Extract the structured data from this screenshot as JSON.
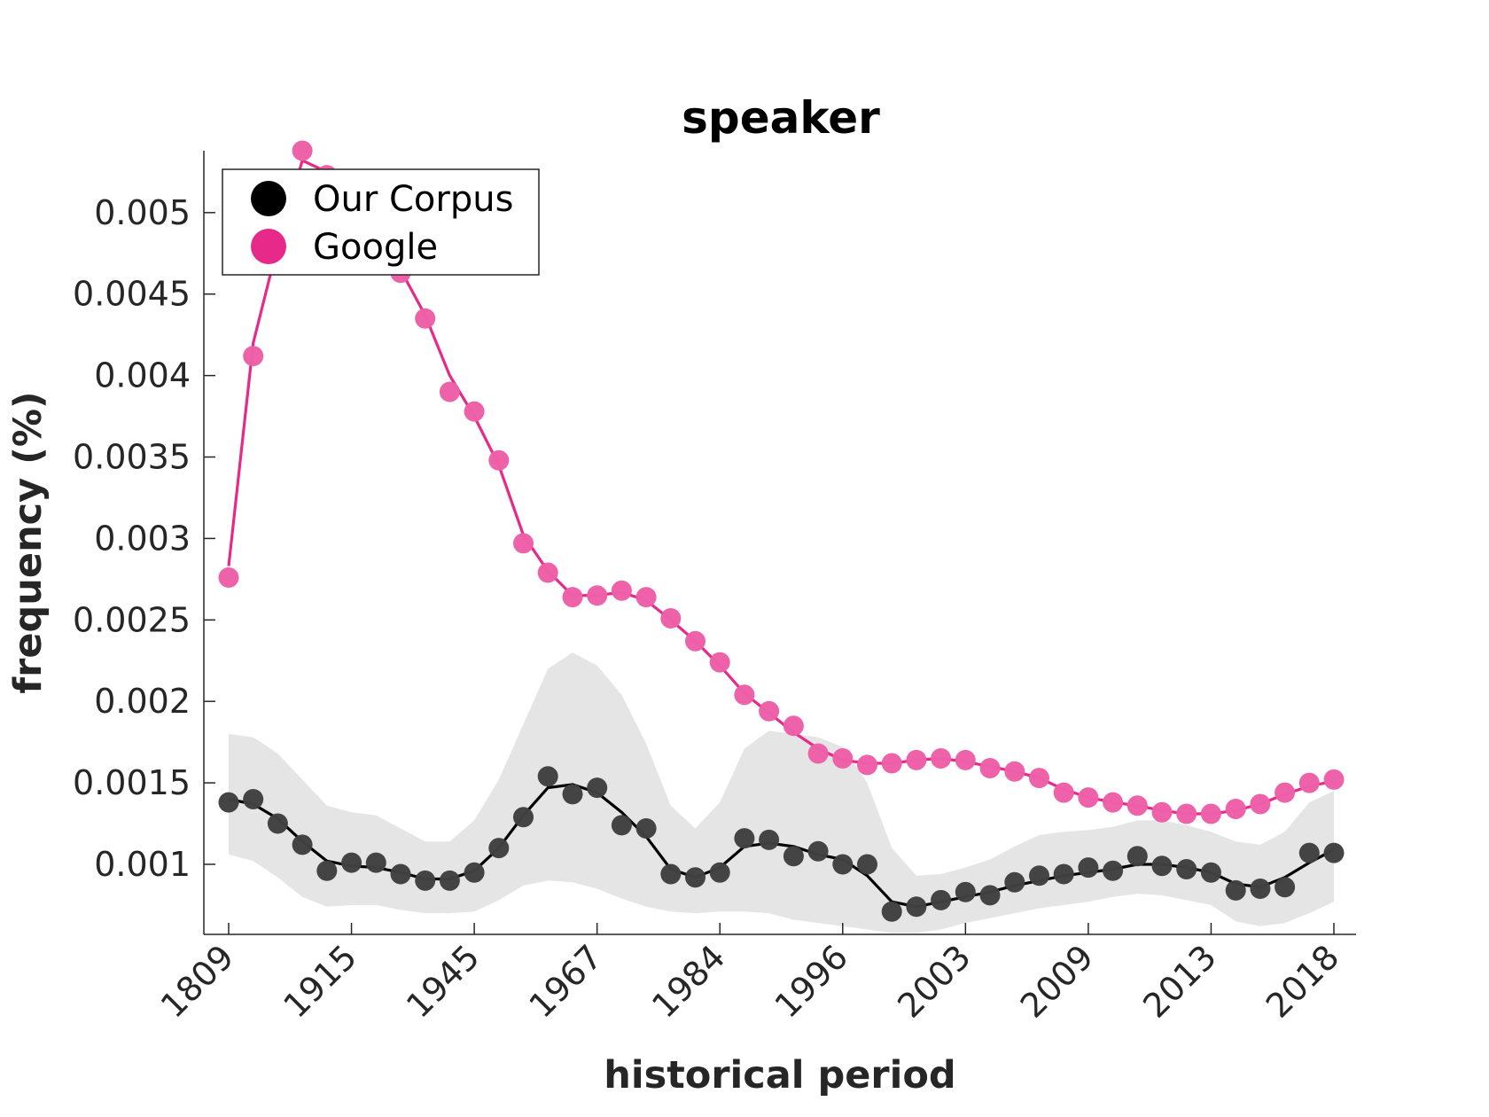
{
  "chart_data": {
    "type": "line",
    "title": "speaker",
    "xlabel": "historical period",
    "ylabel": "frequency (%)",
    "x_tick_labels": [
      "1809",
      "1915",
      "1945",
      "1967",
      "1984",
      "1996",
      "2003",
      "2009",
      "2013",
      "2018"
    ],
    "y_ticks": [
      0.001,
      0.0015,
      0.002,
      0.0025,
      0.003,
      0.0035,
      0.004,
      0.0045,
      0.005
    ],
    "y_tick_labels": [
      "0.001",
      "0.0015",
      "0.002",
      "0.0025",
      "0.003",
      "0.0035",
      "0.004",
      "0.0045",
      "0.005"
    ],
    "ylim": [
      0.00057,
      0.00538
    ],
    "legend_position": "top-left",
    "grid": false,
    "series": [
      {
        "name": "Our Corpus",
        "color": "#000000",
        "marker_color": "#404040",
        "points": [
          0.00138,
          0.0014,
          0.00125,
          0.00112,
          0.00096,
          0.00101,
          0.00101,
          0.00094,
          0.0009,
          0.0009,
          0.00095,
          0.0011,
          0.00129,
          0.00154,
          0.00143,
          0.00147,
          0.00124,
          0.00122,
          0.00094,
          0.00092,
          0.00095,
          0.00116,
          0.00115,
          0.00105,
          0.00108,
          0.001,
          0.001,
          0.00071,
          0.00074,
          0.00078,
          0.00083,
          0.00081,
          0.00089,
          0.00093,
          0.00094,
          0.00098,
          0.00096,
          0.00105,
          0.00099,
          0.00097,
          0.00095,
          0.00084,
          0.00085,
          0.00086,
          0.00107,
          0.00107
        ],
        "smooth": [
          0.0014,
          0.00137,
          0.00128,
          0.00114,
          0.00102,
          0.00099,
          0.00098,
          0.00095,
          0.00091,
          0.00091,
          0.00096,
          0.0011,
          0.0013,
          0.00147,
          0.00149,
          0.00144,
          0.00132,
          0.00117,
          0.00097,
          0.00092,
          0.00098,
          0.00111,
          0.00113,
          0.00111,
          0.00106,
          0.00103,
          0.00093,
          0.00077,
          0.00074,
          0.00077,
          0.0008,
          0.00083,
          0.00087,
          0.0009,
          0.00093,
          0.00095,
          0.00097,
          0.001,
          0.001,
          0.00098,
          0.00095,
          0.00088,
          0.00086,
          0.00092,
          0.00101,
          0.00109
        ],
        "band_upper": [
          0.0018,
          0.00178,
          0.00168,
          0.00152,
          0.00136,
          0.00132,
          0.0013,
          0.00122,
          0.00114,
          0.00114,
          0.00127,
          0.00152,
          0.00186,
          0.0022,
          0.0023,
          0.00222,
          0.00204,
          0.00174,
          0.00136,
          0.00122,
          0.00138,
          0.00171,
          0.00182,
          0.0018,
          0.00178,
          0.00172,
          0.0015,
          0.0011,
          0.00093,
          0.00094,
          0.00098,
          0.00103,
          0.00111,
          0.00118,
          0.0012,
          0.00121,
          0.00123,
          0.00127,
          0.00127,
          0.00124,
          0.0012,
          0.00114,
          0.00112,
          0.0012,
          0.00138,
          0.00145
        ],
        "band_lower": [
          0.00106,
          0.00102,
          0.00092,
          0.0008,
          0.00074,
          0.00075,
          0.00075,
          0.00072,
          0.0007,
          0.0007,
          0.00071,
          0.00078,
          0.00087,
          0.0009,
          0.00089,
          0.00085,
          0.00079,
          0.00074,
          0.00071,
          0.0007,
          0.00071,
          0.00071,
          0.0007,
          0.00066,
          0.00064,
          0.00062,
          0.0006,
          0.00058,
          0.00058,
          0.0006,
          0.00064,
          0.00067,
          0.0007,
          0.00073,
          0.00075,
          0.00077,
          0.0008,
          0.00082,
          0.00081,
          0.00078,
          0.00075,
          0.00065,
          0.00062,
          0.00064,
          0.0007,
          0.00077
        ]
      },
      {
        "name": "Google",
        "color": "#e7298a",
        "marker_color": "#ee5fa8",
        "points": [
          0.00276,
          0.00412,
          0.0048,
          0.00538,
          0.00523,
          0.00495,
          0.00478,
          0.00463,
          0.00435,
          0.0039,
          0.00378,
          0.00348,
          0.00297,
          0.00279,
          0.00264,
          0.00265,
          0.00268,
          0.00264,
          0.00251,
          0.00237,
          0.00224,
          0.00204,
          0.00194,
          0.00185,
          0.00168,
          0.00165,
          0.00161,
          0.00162,
          0.00164,
          0.00165,
          0.00164,
          0.00159,
          0.00157,
          0.00153,
          0.00144,
          0.00141,
          0.00138,
          0.00136,
          0.00132,
          0.00131,
          0.00131,
          0.00134,
          0.00137,
          0.00144,
          0.0015,
          0.00152
        ],
        "smooth": [
          0.00283,
          0.0042,
          0.0048,
          0.00532,
          0.00525,
          0.00508,
          0.0049,
          0.00465,
          0.00437,
          0.004,
          0.00375,
          0.00345,
          0.00302,
          0.0028,
          0.00265,
          0.00265,
          0.00267,
          0.00262,
          0.0025,
          0.00237,
          0.00222,
          0.00205,
          0.00193,
          0.00181,
          0.00171,
          0.00164,
          0.00162,
          0.00162,
          0.00164,
          0.00165,
          0.00163,
          0.0016,
          0.00157,
          0.00153,
          0.00146,
          0.00141,
          0.00138,
          0.00136,
          0.00133,
          0.00131,
          0.00131,
          0.00133,
          0.00137,
          0.00143,
          0.00148,
          0.00151
        ]
      }
    ]
  }
}
